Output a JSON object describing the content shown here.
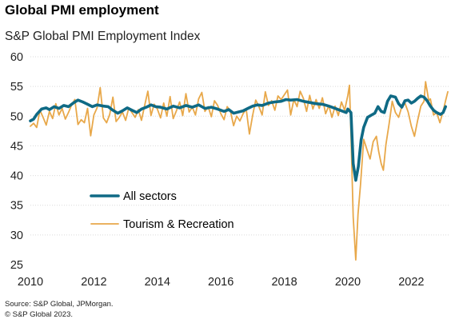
{
  "title": "Global PMI employment",
  "subtitle": "S&P Global PMI Employment Index",
  "source_lines": [
    "Source: S&P Global, JPMorgan.",
    "© S&P Global 2023."
  ],
  "colors": {
    "all_sectors": "#0f6a85",
    "tourism": "#e8a84a",
    "grid": "#d9d9d9"
  },
  "chart_data": {
    "type": "line",
    "title": "S&P Global PMI Employment Index",
    "xlim": [
      2010.0,
      2023.2
    ],
    "ylim": [
      25,
      60
    ],
    "x_ticks": [
      2010,
      2012,
      2014,
      2016,
      2018,
      2020,
      2022
    ],
    "y_ticks": [
      25,
      30,
      35,
      40,
      45,
      50,
      55,
      60
    ],
    "grid": true,
    "legend_position": "center-left",
    "series": [
      {
        "name": "All sectors",
        "color": "#0f6a85",
        "points": [
          [
            2010.0,
            49.2
          ],
          [
            2010.1,
            49.5
          ],
          [
            2010.2,
            50.3
          ],
          [
            2010.35,
            51.2
          ],
          [
            2010.5,
            51.4
          ],
          [
            2010.6,
            51.1
          ],
          [
            2010.75,
            51.6
          ],
          [
            2010.9,
            51.3
          ],
          [
            2011.05,
            51.8
          ],
          [
            2011.2,
            51.6
          ],
          [
            2011.35,
            52.2
          ],
          [
            2011.5,
            52.7
          ],
          [
            2011.65,
            52.4
          ],
          [
            2011.8,
            52.0
          ],
          [
            2011.95,
            51.6
          ],
          [
            2012.1,
            51.9
          ],
          [
            2012.3,
            51.7
          ],
          [
            2012.45,
            51.6
          ],
          [
            2012.6,
            51.0
          ],
          [
            2012.75,
            50.5
          ],
          [
            2012.9,
            50.9
          ],
          [
            2013.05,
            51.4
          ],
          [
            2013.2,
            51.0
          ],
          [
            2013.35,
            50.6
          ],
          [
            2013.5,
            51.2
          ],
          [
            2013.65,
            51.5
          ],
          [
            2013.8,
            51.9
          ],
          [
            2013.95,
            51.6
          ],
          [
            2014.1,
            51.5
          ],
          [
            2014.3,
            51.2
          ],
          [
            2014.5,
            51.7
          ],
          [
            2014.7,
            51.4
          ],
          [
            2014.9,
            51.8
          ],
          [
            2015.1,
            51.5
          ],
          [
            2015.3,
            51.9
          ],
          [
            2015.5,
            51.3
          ],
          [
            2015.7,
            51.5
          ],
          [
            2015.9,
            51.2
          ],
          [
            2016.1,
            50.8
          ],
          [
            2016.25,
            51.1
          ],
          [
            2016.4,
            50.5
          ],
          [
            2016.55,
            50.7
          ],
          [
            2016.7,
            50.9
          ],
          [
            2016.85,
            51.3
          ],
          [
            2017.0,
            51.7
          ],
          [
            2017.15,
            51.9
          ],
          [
            2017.3,
            51.8
          ],
          [
            2017.5,
            52.2
          ],
          [
            2017.7,
            52.4
          ],
          [
            2017.9,
            52.5
          ],
          [
            2018.05,
            52.8
          ],
          [
            2018.2,
            52.7
          ],
          [
            2018.4,
            52.8
          ],
          [
            2018.6,
            52.5
          ],
          [
            2018.8,
            52.3
          ],
          [
            2019.0,
            52.1
          ],
          [
            2019.2,
            52.0
          ],
          [
            2019.4,
            51.7
          ],
          [
            2019.6,
            51.3
          ],
          [
            2019.8,
            50.9
          ],
          [
            2019.95,
            50.6
          ],
          [
            2020.0,
            51.2
          ],
          [
            2020.1,
            50.6
          ],
          [
            2020.17,
            42.0
          ],
          [
            2020.25,
            39.2
          ],
          [
            2020.33,
            41.5
          ],
          [
            2020.42,
            46.0
          ],
          [
            2020.5,
            48.1
          ],
          [
            2020.62,
            49.8
          ],
          [
            2020.75,
            50.2
          ],
          [
            2020.85,
            50.5
          ],
          [
            2020.95,
            51.6
          ],
          [
            2021.05,
            50.8
          ],
          [
            2021.15,
            50.6
          ],
          [
            2021.25,
            52.5
          ],
          [
            2021.35,
            53.4
          ],
          [
            2021.5,
            53.2
          ],
          [
            2021.6,
            52.1
          ],
          [
            2021.7,
            51.5
          ],
          [
            2021.8,
            52.6
          ],
          [
            2021.9,
            52.7
          ],
          [
            2022.0,
            52.2
          ],
          [
            2022.1,
            52.5
          ],
          [
            2022.2,
            53.0
          ],
          [
            2022.3,
            53.4
          ],
          [
            2022.4,
            53.2
          ],
          [
            2022.5,
            52.6
          ],
          [
            2022.6,
            51.7
          ],
          [
            2022.7,
            51.0
          ],
          [
            2022.8,
            50.6
          ],
          [
            2022.92,
            50.3
          ],
          [
            2023.0,
            50.6
          ],
          [
            2023.08,
            51.6
          ]
        ]
      },
      {
        "name": "Tourism & Recreation",
        "color": "#e8a84a",
        "points": [
          [
            2010.0,
            48.3
          ],
          [
            2010.1,
            48.8
          ],
          [
            2010.2,
            48.1
          ],
          [
            2010.3,
            51.0
          ],
          [
            2010.4,
            49.8
          ],
          [
            2010.5,
            48.5
          ],
          [
            2010.6,
            50.8
          ],
          [
            2010.7,
            49.6
          ],
          [
            2010.8,
            52.1
          ],
          [
            2010.9,
            50.2
          ],
          [
            2011.0,
            51.3
          ],
          [
            2011.1,
            49.5
          ],
          [
            2011.2,
            50.6
          ],
          [
            2011.3,
            51.9
          ],
          [
            2011.4,
            52.8
          ],
          [
            2011.5,
            48.6
          ],
          [
            2011.6,
            49.4
          ],
          [
            2011.7,
            48.9
          ],
          [
            2011.8,
            51.3
          ],
          [
            2011.9,
            46.7
          ],
          [
            2012.0,
            50.2
          ],
          [
            2012.1,
            51.4
          ],
          [
            2012.2,
            54.8
          ],
          [
            2012.3,
            49.7
          ],
          [
            2012.4,
            48.9
          ],
          [
            2012.5,
            50.3
          ],
          [
            2012.6,
            53.2
          ],
          [
            2012.7,
            49.1
          ],
          [
            2012.8,
            49.8
          ],
          [
            2012.9,
            50.7
          ],
          [
            2013.0,
            49.3
          ],
          [
            2013.1,
            51.4
          ],
          [
            2013.2,
            50.6
          ],
          [
            2013.3,
            49.8
          ],
          [
            2013.4,
            51.1
          ],
          [
            2013.5,
            49.3
          ],
          [
            2013.6,
            51.8
          ],
          [
            2013.7,
            54.2
          ],
          [
            2013.8,
            50.1
          ],
          [
            2013.9,
            52.0
          ],
          [
            2014.0,
            51.2
          ],
          [
            2014.1,
            49.7
          ],
          [
            2014.2,
            52.2
          ],
          [
            2014.3,
            50.0
          ],
          [
            2014.4,
            53.3
          ],
          [
            2014.5,
            49.6
          ],
          [
            2014.6,
            50.9
          ],
          [
            2014.7,
            52.4
          ],
          [
            2014.8,
            50.1
          ],
          [
            2014.9,
            53.8
          ],
          [
            2015.0,
            50.7
          ],
          [
            2015.1,
            51.5
          ],
          [
            2015.2,
            50.2
          ],
          [
            2015.3,
            52.9
          ],
          [
            2015.4,
            54.0
          ],
          [
            2015.5,
            50.8
          ],
          [
            2015.6,
            51.6
          ],
          [
            2015.7,
            49.9
          ],
          [
            2015.8,
            52.6
          ],
          [
            2015.9,
            51.8
          ],
          [
            2016.0,
            50.4
          ],
          [
            2016.1,
            49.4
          ],
          [
            2016.2,
            51.6
          ],
          [
            2016.3,
            50.9
          ],
          [
            2016.4,
            48.4
          ],
          [
            2016.5,
            50.0
          ],
          [
            2016.6,
            49.2
          ],
          [
            2016.7,
            50.4
          ],
          [
            2016.8,
            51.2
          ],
          [
            2016.9,
            47.0
          ],
          [
            2017.0,
            50.1
          ],
          [
            2017.1,
            52.7
          ],
          [
            2017.2,
            51.6
          ],
          [
            2017.3,
            50.2
          ],
          [
            2017.4,
            54.1
          ],
          [
            2017.5,
            51.8
          ],
          [
            2017.6,
            52.6
          ],
          [
            2017.7,
            51.0
          ],
          [
            2017.8,
            53.4
          ],
          [
            2017.9,
            52.8
          ],
          [
            2018.0,
            53.6
          ],
          [
            2018.1,
            54.4
          ],
          [
            2018.2,
            50.2
          ],
          [
            2018.3,
            52.8
          ],
          [
            2018.4,
            51.6
          ],
          [
            2018.5,
            54.2
          ],
          [
            2018.6,
            53.0
          ],
          [
            2018.7,
            50.8
          ],
          [
            2018.8,
            53.5
          ],
          [
            2018.9,
            51.2
          ],
          [
            2019.0,
            52.8
          ],
          [
            2019.1,
            51.3
          ],
          [
            2019.2,
            53.1
          ],
          [
            2019.3,
            50.4
          ],
          [
            2019.4,
            51.8
          ],
          [
            2019.5,
            49.8
          ],
          [
            2019.6,
            51.7
          ],
          [
            2019.7,
            50.1
          ],
          [
            2019.8,
            52.4
          ],
          [
            2019.9,
            51.0
          ],
          [
            2020.0,
            53.5
          ],
          [
            2020.05,
            55.2
          ],
          [
            2020.1,
            47.0
          ],
          [
            2020.17,
            33.0
          ],
          [
            2020.25,
            25.8
          ],
          [
            2020.32,
            33.5
          ],
          [
            2020.4,
            38.4
          ],
          [
            2020.5,
            46.1
          ],
          [
            2020.6,
            44.4
          ],
          [
            2020.7,
            42.8
          ],
          [
            2020.8,
            45.7
          ],
          [
            2020.9,
            46.6
          ],
          [
            2020.97,
            44.1
          ],
          [
            2021.05,
            42.0
          ],
          [
            2021.12,
            40.9
          ],
          [
            2021.2,
            45.2
          ],
          [
            2021.3,
            48.7
          ],
          [
            2021.4,
            52.5
          ],
          [
            2021.5,
            50.6
          ],
          [
            2021.6,
            49.8
          ],
          [
            2021.7,
            51.6
          ],
          [
            2021.8,
            52.2
          ],
          [
            2021.9,
            50.7
          ],
          [
            2022.0,
            48.3
          ],
          [
            2022.1,
            46.6
          ],
          [
            2022.2,
            49.3
          ],
          [
            2022.3,
            51.7
          ],
          [
            2022.4,
            52.5
          ],
          [
            2022.45,
            55.8
          ],
          [
            2022.55,
            52.6
          ],
          [
            2022.6,
            52.9
          ],
          [
            2022.7,
            50.2
          ],
          [
            2022.8,
            50.6
          ],
          [
            2022.9,
            48.9
          ],
          [
            2023.0,
            50.8
          ],
          [
            2023.08,
            52.6
          ],
          [
            2023.15,
            54.1
          ]
        ]
      }
    ]
  }
}
